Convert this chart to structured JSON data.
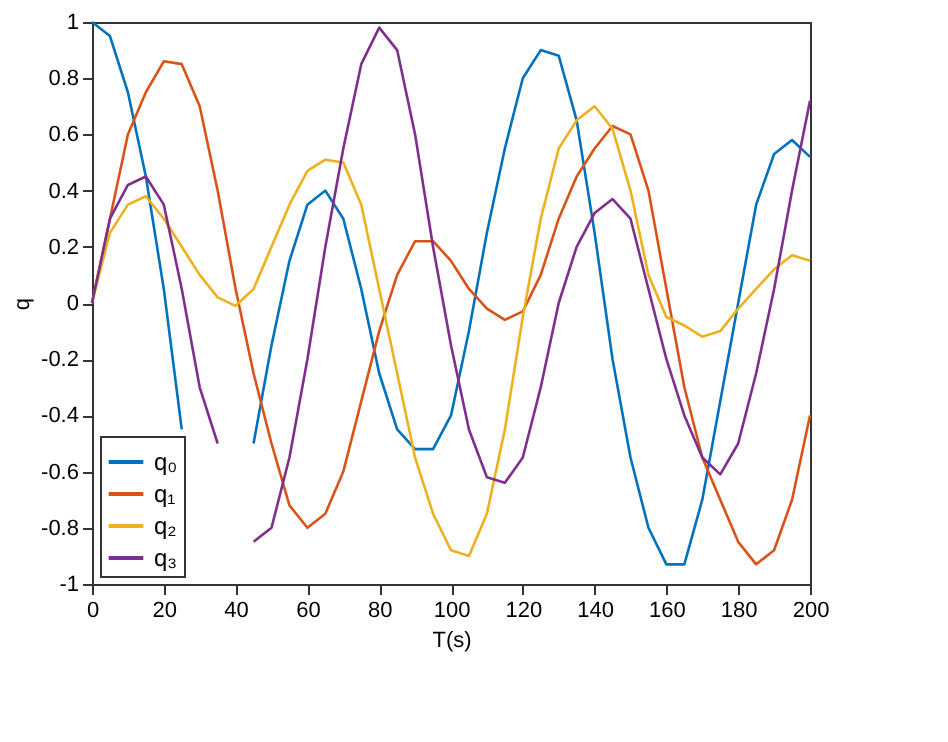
{
  "chart_data": {
    "type": "line",
    "xlabel": "T(s)",
    "ylabel": "q",
    "x": [
      0,
      5,
      10,
      15,
      20,
      25,
      30,
      35,
      40,
      45,
      50,
      55,
      60,
      65,
      70,
      75,
      80,
      85,
      90,
      95,
      100,
      105,
      110,
      115,
      120,
      125,
      130,
      135,
      140,
      145,
      150,
      155,
      160,
      165,
      170,
      175,
      180,
      185,
      190,
      195,
      200
    ],
    "series": [
      {
        "name": "q₀",
        "color": "#0072bd",
        "values": [
          1,
          0.95,
          0.75,
          0.45,
          0.05,
          -0.45,
          null,
          null,
          null,
          -0.5,
          -0.15,
          0.15,
          0.35,
          0.4,
          0.3,
          0.05,
          -0.25,
          -0.45,
          -0.52,
          -0.52,
          -0.4,
          -0.1,
          0.25,
          0.55,
          0.8,
          0.9,
          0.88,
          0.65,
          0.25,
          -0.2,
          -0.55,
          -0.8,
          -0.93,
          -0.93,
          -0.7,
          -0.35,
          0.0,
          0.35,
          0.53,
          0.58,
          0.52
        ]
      },
      {
        "name": "q₁",
        "color": "#d95319",
        "values": [
          0,
          0.3,
          0.6,
          0.75,
          0.86,
          0.85,
          0.7,
          0.4,
          0.05,
          -0.25,
          -0.5,
          -0.72,
          -0.8,
          -0.75,
          -0.6,
          -0.35,
          -0.1,
          0.1,
          0.22,
          0.22,
          0.15,
          0.05,
          -0.02,
          -0.06,
          -0.03,
          0.1,
          0.3,
          0.45,
          0.55,
          0.63,
          0.6,
          0.4,
          0.05,
          -0.3,
          -0.55,
          -0.7,
          -0.85,
          -0.93,
          -0.88,
          -0.7,
          -0.4
        ]
      },
      {
        "name": "q₂",
        "color": "#edb120",
        "values": [
          0,
          0.25,
          0.35,
          0.38,
          0.3,
          0.2,
          0.1,
          0.02,
          -0.01,
          0.05,
          0.2,
          0.35,
          0.47,
          0.51,
          0.5,
          0.35,
          0.05,
          -0.25,
          -0.55,
          -0.75,
          -0.88,
          -0.9,
          -0.75,
          -0.45,
          -0.05,
          0.3,
          0.55,
          0.65,
          0.7,
          0.62,
          0.4,
          0.1,
          -0.05,
          -0.08,
          -0.12,
          -0.1,
          -0.02,
          0.05,
          0.12,
          0.17,
          0.15
        ]
      },
      {
        "name": "q₃",
        "color": "#7e2f8e",
        "values": [
          0,
          0.3,
          0.42,
          0.45,
          0.35,
          0.05,
          -0.3,
          -0.5,
          null,
          -0.85,
          -0.8,
          -0.55,
          -0.2,
          0.2,
          0.55,
          0.85,
          0.98,
          0.9,
          0.6,
          0.2,
          -0.15,
          -0.45,
          -0.62,
          -0.64,
          -0.55,
          -0.3,
          0.0,
          0.2,
          0.32,
          0.37,
          0.3,
          0.05,
          -0.2,
          -0.4,
          -0.55,
          -0.61,
          -0.5,
          -0.25,
          0.05,
          0.4,
          0.72
        ]
      }
    ],
    "xlim": [
      0,
      200
    ],
    "xticks": [
      0,
      20,
      40,
      60,
      80,
      100,
      120,
      140,
      160,
      180,
      200
    ],
    "ylim": [
      -1,
      1
    ],
    "yticks": [
      -1,
      -0.8,
      -0.6,
      -0.4,
      -0.2,
      0,
      0.2,
      0.4,
      0.6,
      0.8,
      1
    ],
    "grid": false,
    "legend": "bottom left",
    "marker": "none",
    "line_style": "solid"
  }
}
